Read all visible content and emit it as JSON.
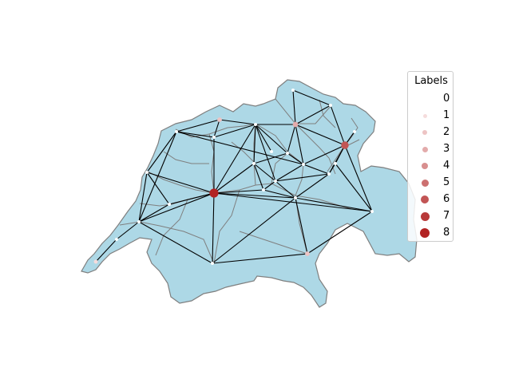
{
  "map": {
    "region": "Switzerland",
    "fill_color": "#add8e6",
    "border_color": "#808080",
    "edge_color": "#000000"
  },
  "legend": {
    "title": "Labels",
    "items": [
      {
        "label": "0",
        "color": "#ffffff"
      },
      {
        "label": "1",
        "color": "#f5dcdc"
      },
      {
        "label": "2",
        "color": "#edc4c4"
      },
      {
        "label": "3",
        "color": "#e3abab"
      },
      {
        "label": "4",
        "color": "#d88f8f"
      },
      {
        "label": "5",
        "color": "#cc7070"
      },
      {
        "label": "6",
        "color": "#c25555"
      },
      {
        "label": "7",
        "color": "#b83a3a"
      },
      {
        "label": "8",
        "color": "#b22222"
      }
    ]
  },
  "graph": {
    "nodes": [
      {
        "id": "n1",
        "label": 0
      },
      {
        "id": "n2",
        "label": 0
      },
      {
        "id": "n3",
        "label": 0
      },
      {
        "id": "n4",
        "label": 2
      },
      {
        "id": "n5",
        "label": 0
      },
      {
        "id": "n6",
        "label": 0
      },
      {
        "id": "n7",
        "label": 3
      },
      {
        "id": "n8",
        "label": 0
      },
      {
        "id": "n9",
        "label": 6
      },
      {
        "id": "n10",
        "label": 0
      },
      {
        "id": "n11",
        "label": 0
      },
      {
        "id": "n12",
        "label": 0
      },
      {
        "id": "n13",
        "label": 0
      },
      {
        "id": "n14",
        "label": 0
      },
      {
        "id": "n15",
        "label": 0
      },
      {
        "id": "n16",
        "label": 0
      },
      {
        "id": "n17",
        "label": 0
      },
      {
        "id": "n18",
        "label": 8
      },
      {
        "id": "n19",
        "label": 0
      },
      {
        "id": "n20",
        "label": 0
      },
      {
        "id": "n21",
        "label": 0
      },
      {
        "id": "n22",
        "label": 0
      },
      {
        "id": "n23",
        "label": 0
      },
      {
        "id": "n24",
        "label": 0
      },
      {
        "id": "n25",
        "label": 2
      },
      {
        "id": "n26",
        "label": 0
      },
      {
        "id": "n27",
        "label": 1
      }
    ],
    "edges": [
      [
        "n2",
        "n13"
      ],
      [
        "n2",
        "n4"
      ],
      [
        "n2",
        "n5"
      ],
      [
        "n2",
        "n21"
      ],
      [
        "n2",
        "n12"
      ],
      [
        "n4",
        "n5"
      ],
      [
        "n4",
        "n6"
      ],
      [
        "n5",
        "n18"
      ],
      [
        "n5",
        "n6"
      ],
      [
        "n6",
        "n7"
      ],
      [
        "n6",
        "n10"
      ],
      [
        "n6",
        "n11"
      ],
      [
        "n6",
        "n14"
      ],
      [
        "n6",
        "n18"
      ],
      [
        "n6",
        "n15"
      ],
      [
        "n1",
        "n3"
      ],
      [
        "n1",
        "n7"
      ],
      [
        "n3",
        "n7"
      ],
      [
        "n3",
        "n9"
      ],
      [
        "n7",
        "n10"
      ],
      [
        "n7",
        "n9"
      ],
      [
        "n7",
        "n13"
      ],
      [
        "n10",
        "n13"
      ],
      [
        "n10",
        "n14"
      ],
      [
        "n8",
        "n9"
      ],
      [
        "n9",
        "n13"
      ],
      [
        "n9",
        "n16"
      ],
      [
        "n9",
        "n23"
      ],
      [
        "n9",
        "n22"
      ],
      [
        "n12",
        "n18"
      ],
      [
        "n12",
        "n19"
      ],
      [
        "n12",
        "n21"
      ],
      [
        "n13",
        "n16"
      ],
      [
        "n13",
        "n15"
      ],
      [
        "n14",
        "n15"
      ],
      [
        "n14",
        "n17"
      ],
      [
        "n14",
        "n18"
      ],
      [
        "n15",
        "n16"
      ],
      [
        "n15",
        "n17"
      ],
      [
        "n15",
        "n20"
      ],
      [
        "n16",
        "n20"
      ],
      [
        "n16",
        "n23"
      ],
      [
        "n17",
        "n18"
      ],
      [
        "n17",
        "n20"
      ],
      [
        "n18",
        "n19"
      ],
      [
        "n18",
        "n21"
      ],
      [
        "n18",
        "n20"
      ],
      [
        "n18",
        "n24"
      ],
      [
        "n18",
        "n22"
      ],
      [
        "n19",
        "n21"
      ],
      [
        "n20",
        "n22"
      ],
      [
        "n20",
        "n24"
      ],
      [
        "n20",
        "n25"
      ],
      [
        "n21",
        "n26"
      ],
      [
        "n21",
        "n24"
      ],
      [
        "n22",
        "n23"
      ],
      [
        "n24",
        "n25"
      ],
      [
        "n25",
        "n22"
      ],
      [
        "n26",
        "n27"
      ]
    ]
  }
}
